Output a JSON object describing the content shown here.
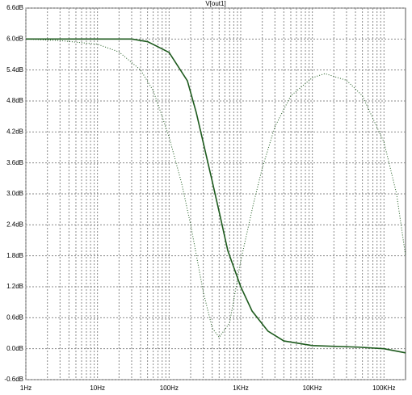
{
  "chart_data": {
    "type": "line",
    "title": "V[out1]",
    "x_log": true,
    "grid": true,
    "minor_grid": true,
    "xlim": [
      1,
      200000
    ],
    "xticks": [
      {
        "value": 1,
        "label": "1Hz"
      },
      {
        "value": 10,
        "label": "10Hz"
      },
      {
        "value": 100,
        "label": "100Hz"
      },
      {
        "value": 1000,
        "label": "1KHz"
      },
      {
        "value": 10000,
        "label": "10KHz"
      },
      {
        "value": 100000,
        "label": "100KHz"
      }
    ],
    "ylim": [
      -0.6,
      6.6
    ],
    "yticks": [
      {
        "value": 6.6,
        "label": "6.6dB"
      },
      {
        "value": 6.0,
        "label": "6.0dB"
      },
      {
        "value": 5.4,
        "label": "5.4dB"
      },
      {
        "value": 4.8,
        "label": "4.8dB"
      },
      {
        "value": 4.2,
        "label": "4.2dB"
      },
      {
        "value": 3.6,
        "label": "3.6dB"
      },
      {
        "value": 3.0,
        "label": "3.0dB"
      },
      {
        "value": 2.4,
        "label": "2.4dB"
      },
      {
        "value": 1.8,
        "label": "1.8dB"
      },
      {
        "value": 1.2,
        "label": "1.2dB"
      },
      {
        "value": 0.6,
        "label": "0.6dB"
      },
      {
        "value": 0.0,
        "label": "0.0dB"
      },
      {
        "value": -0.6,
        "label": "-0.6dB"
      }
    ],
    "series": [
      {
        "color": "#1d5a1d",
        "style": "solid",
        "x": [
          1,
          10,
          30,
          50,
          70,
          100,
          180,
          240,
          390,
          510,
          660,
          1000,
          1440,
          2400,
          4000,
          10000,
          44000,
          100000,
          200000
        ],
        "values": [
          6.0,
          6.0,
          6.0,
          5.95,
          5.85,
          5.74,
          5.19,
          4.57,
          3.31,
          2.6,
          1.9,
          1.2,
          0.73,
          0.34,
          0.15,
          0.06,
          0.03,
          0.0,
          -0.08
        ]
      },
      {
        "color": "#1d5a1d",
        "style": "dotted",
        "x": [
          1,
          3,
          10,
          20,
          40,
          60,
          80,
          100,
          150,
          200,
          300,
          400,
          500,
          700,
          1000,
          1500,
          2000,
          3000,
          5000,
          10000,
          15000,
          30000,
          50000,
          100000,
          150000,
          200000
        ],
        "values": [
          6.0,
          5.97,
          5.9,
          5.75,
          5.4,
          5.0,
          4.5,
          4.1,
          3.2,
          2.4,
          1.1,
          0.4,
          0.22,
          0.5,
          1.7,
          2.8,
          3.5,
          4.3,
          4.9,
          5.25,
          5.33,
          5.2,
          4.9,
          4.0,
          3.0,
          1.8
        ]
      }
    ]
  }
}
